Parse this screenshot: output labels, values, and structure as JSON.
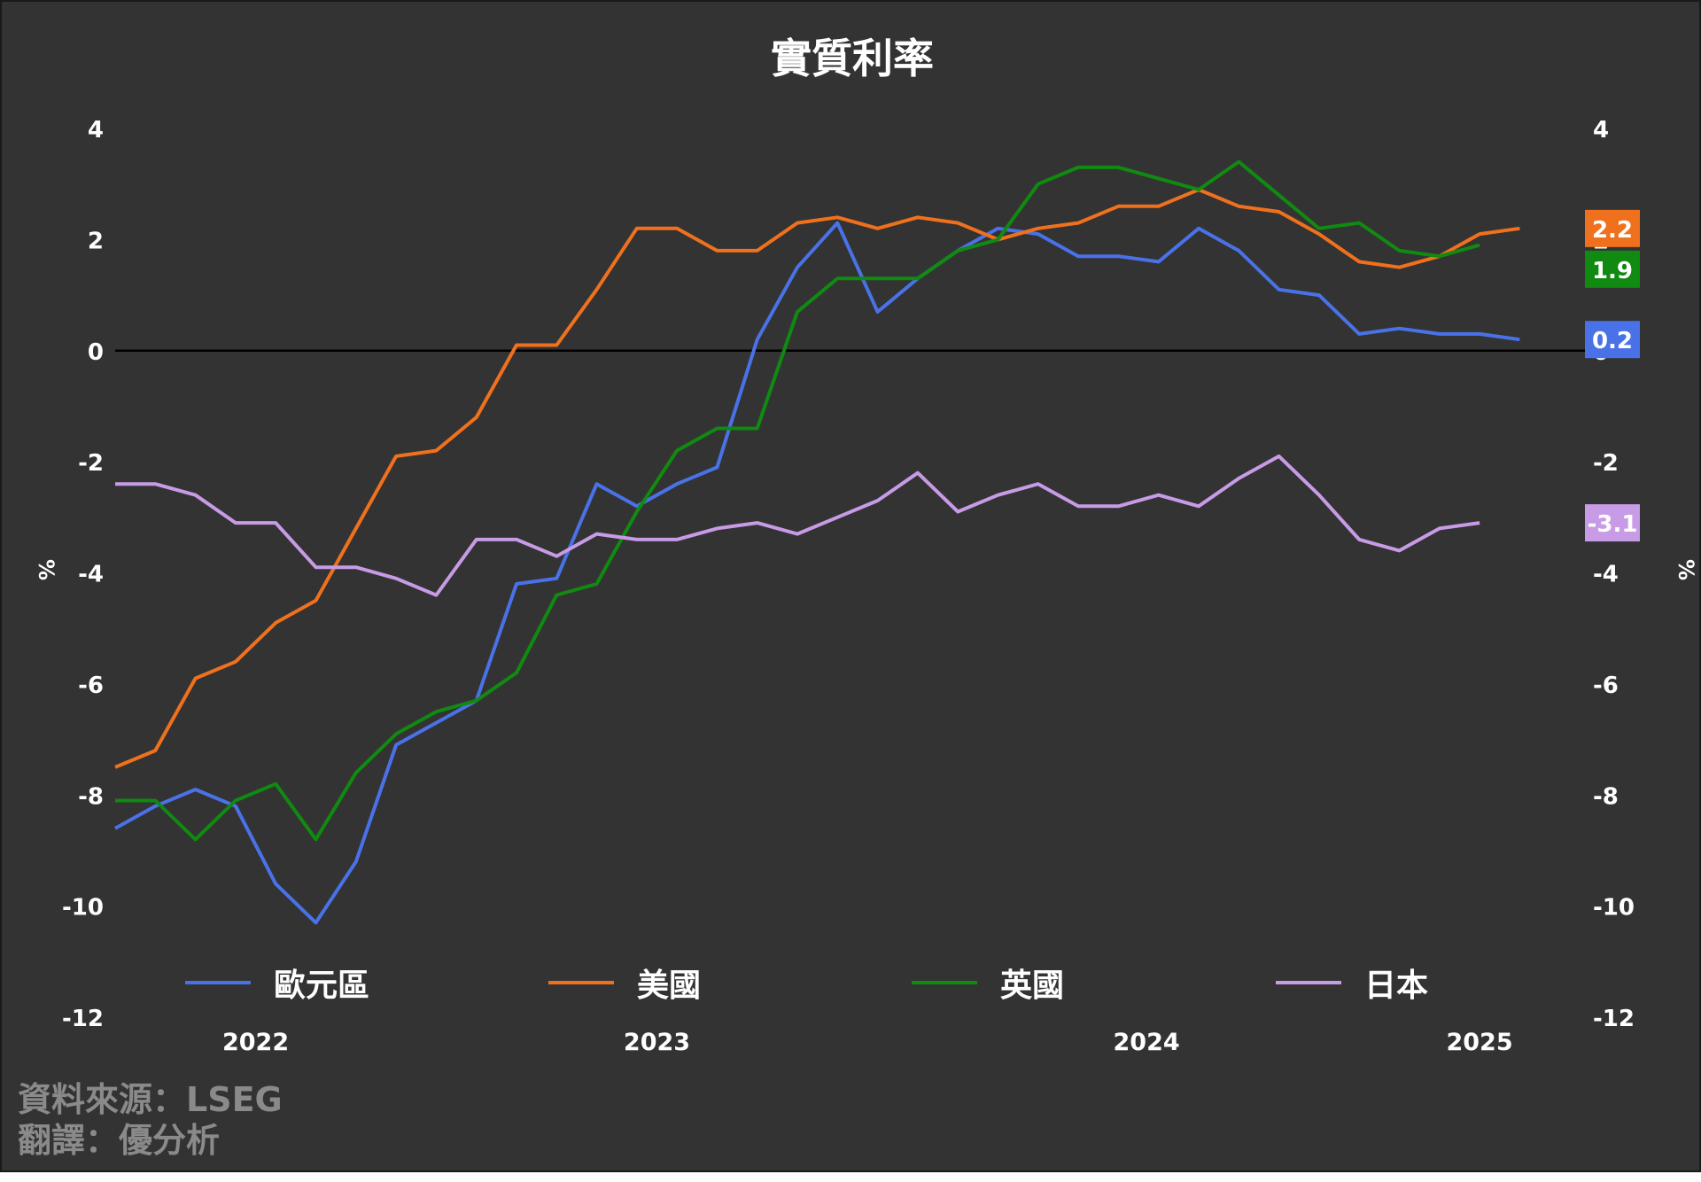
{
  "title": "實質利率",
  "source": "資料來源：LSEG",
  "translation": "翻譯：優分析",
  "chart_data": {
    "type": "line",
    "ylabel_left": "%",
    "ylabel_right": "%",
    "ylim": [
      -12,
      4
    ],
    "yticks": [
      4,
      2,
      0,
      -2,
      -4,
      -6,
      -8,
      -10,
      -12
    ],
    "xlim": [
      0,
      35.5
    ],
    "xticks": [
      {
        "x": 3.5,
        "label": "2022"
      },
      {
        "x": 13.5,
        "label": "2023"
      },
      {
        "x": 25.7,
        "label": "2024"
      },
      {
        "x": 34.0,
        "label": "2025"
      }
    ],
    "zero_line": true,
    "series": [
      {
        "name": "歐元區",
        "color": "#4a72e8",
        "end_label": "0.2",
        "values": [
          -8.6,
          -8.2,
          -7.9,
          -8.2,
          -9.6,
          -10.3,
          -9.2,
          -7.1,
          -6.7,
          -6.3,
          -4.2,
          -4.1,
          -2.4,
          -2.8,
          -2.4,
          -2.1,
          0.2,
          1.5,
          2.3,
          0.7,
          1.3,
          1.8,
          2.2,
          2.1,
          1.7,
          1.7,
          1.6,
          2.2,
          1.8,
          1.1,
          1.0,
          0.3,
          0.4,
          0.3,
          0.3,
          0.2
        ]
      },
      {
        "name": "美國",
        "color": "#f0711d",
        "end_label": "2.2",
        "values": [
          -7.5,
          -7.2,
          -5.9,
          -5.6,
          -4.9,
          -4.5,
          -3.2,
          -1.9,
          -1.8,
          -1.2,
          0.1,
          0.1,
          1.1,
          2.2,
          2.2,
          1.8,
          1.8,
          2.3,
          2.4,
          2.2,
          2.4,
          2.3,
          2.0,
          2.2,
          2.3,
          2.6,
          2.6,
          2.9,
          2.6,
          2.5,
          2.1,
          1.6,
          1.5,
          1.7,
          2.1,
          2.2
        ]
      },
      {
        "name": "英國",
        "color": "#108a10",
        "end_label": "1.9",
        "values": [
          -8.1,
          -8.1,
          -8.8,
          -8.1,
          -7.8,
          -8.8,
          -7.6,
          -6.9,
          -6.5,
          -6.3,
          -5.8,
          -4.4,
          -4.2,
          -2.9,
          -1.8,
          -1.4,
          -1.4,
          0.7,
          1.3,
          1.3,
          1.3,
          1.8,
          2.0,
          3.0,
          3.3,
          3.3,
          3.1,
          2.9,
          3.4,
          2.8,
          2.2,
          2.3,
          1.8,
          1.7,
          1.9
        ]
      },
      {
        "name": "日本",
        "color": "#c79be6",
        "end_label": "-3.1",
        "values": [
          -2.4,
          -2.4,
          -2.6,
          -3.1,
          -3.1,
          -3.9,
          -3.9,
          -4.1,
          -4.4,
          -3.4,
          -3.4,
          -3.7,
          -3.3,
          -3.4,
          -3.4,
          -3.2,
          -3.1,
          -3.3,
          -3.0,
          -2.7,
          -2.2,
          -2.9,
          -2.6,
          -2.4,
          -2.8,
          -2.8,
          -2.6,
          -2.8,
          -2.3,
          -1.9,
          -2.6,
          -3.4,
          -3.6,
          -3.2,
          -3.1
        ]
      }
    ]
  }
}
